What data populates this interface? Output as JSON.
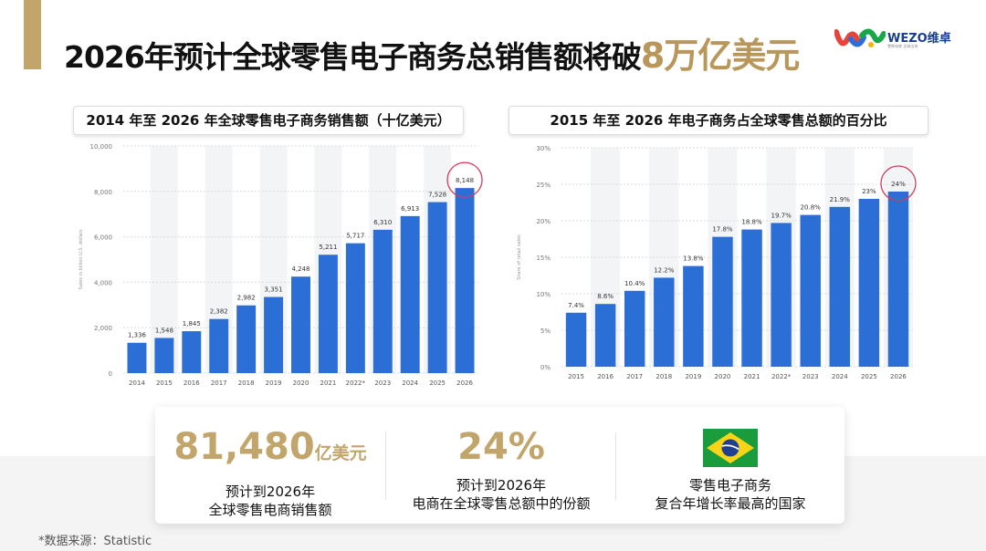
{
  "header": {
    "title_main": "2026年预计全球零售电子商务总销售额将破",
    "title_highlight": "8万亿美元",
    "logo_text": "WEZO维卓",
    "logo_sub": "零售电商 全球出海"
  },
  "colors": {
    "accent": "#c2a56a",
    "bar": "#2b6fd6",
    "circle": "#d63a5b"
  },
  "chart_data": [
    {
      "type": "bar",
      "title": "2014 年至 2026 年全球零售电子商务销售额（十亿美元）",
      "ylabel": "Sales in billion U.S. dollars",
      "xlabel": "",
      "categories": [
        "2014",
        "2015",
        "2016",
        "2017",
        "2018",
        "2019",
        "2020",
        "2021",
        "2022*",
        "2023",
        "2024",
        "2025",
        "2026"
      ],
      "values": [
        1336,
        1548,
        1845,
        2382,
        2982,
        3351,
        4248,
        5211,
        5717,
        6310,
        6913,
        7528,
        8148
      ],
      "labels": [
        "1,336",
        "1,548",
        "1,845",
        "2,382",
        "2,982",
        "3,351",
        "4,248",
        "5,211",
        "5,717",
        "6,310",
        "6,913",
        "7,528",
        "8,148"
      ],
      "ylim": [
        0,
        10000
      ],
      "yticks": [
        0,
        2000,
        4000,
        6000,
        8000,
        10000
      ],
      "ytick_labels": [
        "0",
        "2,000",
        "4,000",
        "6,000",
        "8,000",
        "10,000"
      ],
      "highlight_index": 12,
      "grid": true
    },
    {
      "type": "bar",
      "title": "2015 年至 2026 年电子商务占全球零售总额的百分比",
      "ylabel": "Share of retail sales",
      "xlabel": "",
      "categories": [
        "2015",
        "2016",
        "2017",
        "2018",
        "2019",
        "2020",
        "2021",
        "2022*",
        "2023",
        "2024",
        "2025",
        "2026"
      ],
      "values": [
        7.4,
        8.6,
        10.4,
        12.2,
        13.8,
        17.8,
        18.8,
        19.7,
        20.8,
        21.9,
        23,
        24
      ],
      "labels": [
        "7.4%",
        "8.6%",
        "10.4%",
        "12.2%",
        "13.8%",
        "17.8%",
        "18.8%",
        "19.7%",
        "20.8%",
        "21.9%",
        "23%",
        "24%"
      ],
      "ylim": [
        0,
        30
      ],
      "yticks": [
        0,
        5,
        10,
        15,
        20,
        25,
        30
      ],
      "ytick_labels": [
        "0%",
        "5%",
        "10%",
        "15%",
        "20%",
        "25%",
        "30%"
      ],
      "highlight_index": 11,
      "grid": true
    }
  ],
  "stats": [
    {
      "value": "81,480",
      "unit": "亿美元",
      "line1": "预计到2026年",
      "line2": "全球零售电商销售额"
    },
    {
      "value": "24%",
      "unit": "",
      "line1": "预计到2026年",
      "line2": "电商在全球零售总额中的份额"
    },
    {
      "value": "",
      "unit": "",
      "line1": "零售电子商务",
      "line2": "复合年增长率最高的国家",
      "flag": "brazil-flag"
    }
  ],
  "source": "*数据来源：Statistic"
}
